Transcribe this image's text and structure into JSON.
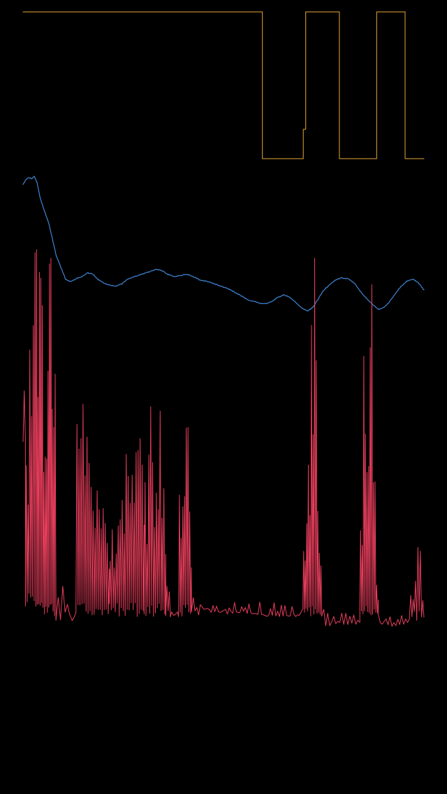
{
  "chart_data": {
    "type": "line",
    "title": "",
    "xlabel": "",
    "ylabel": "",
    "grid": false,
    "legend": "none",
    "x_range": [
      0,
      100
    ],
    "series": [
      {
        "id": "state",
        "color": "#e8a838",
        "stroke": 1,
        "step": true,
        "y_range": [
          0,
          1
        ],
        "points": [
          [
            0,
            1
          ],
          [
            59.7,
            1
          ],
          [
            59.7,
            0
          ],
          [
            69.9,
            0
          ],
          [
            69.9,
            0.2
          ],
          [
            70.5,
            0.2
          ],
          [
            70.5,
            1
          ],
          [
            78.9,
            1
          ],
          [
            78.9,
            0
          ],
          [
            88.2,
            0
          ],
          [
            88.2,
            1
          ],
          [
            95.3,
            1
          ],
          [
            95.3,
            0
          ],
          [
            100,
            0
          ]
        ]
      },
      {
        "id": "smooth",
        "color": "#3f86d4",
        "stroke": 1.2,
        "step": false,
        "noise": 0.6,
        "seed": 7,
        "y_range": [
          0,
          1
        ],
        "points": [
          [
            0,
            0.93
          ],
          [
            0.6,
            0.95
          ],
          [
            1.4,
            0.96
          ],
          [
            2.2,
            0.955
          ],
          [
            2.8,
            0.965
          ],
          [
            3.5,
            0.94
          ],
          [
            4.2,
            0.88
          ],
          [
            5.2,
            0.83
          ],
          [
            6.3,
            0.78
          ],
          [
            7.3,
            0.71
          ],
          [
            8.3,
            0.64
          ],
          [
            9.5,
            0.59
          ],
          [
            10.6,
            0.545
          ],
          [
            11.7,
            0.535
          ],
          [
            13,
            0.545
          ],
          [
            14.6,
            0.555
          ],
          [
            16.2,
            0.57
          ],
          [
            17.5,
            0.565
          ],
          [
            18.6,
            0.545
          ],
          [
            20,
            0.53
          ],
          [
            21.7,
            0.52
          ],
          [
            23.2,
            0.515
          ],
          [
            24.6,
            0.525
          ],
          [
            26.1,
            0.545
          ],
          [
            27.8,
            0.555
          ],
          [
            29.6,
            0.565
          ],
          [
            31.4,
            0.575
          ],
          [
            33.2,
            0.585
          ],
          [
            34.6,
            0.58
          ],
          [
            36.1,
            0.565
          ],
          [
            37.8,
            0.555
          ],
          [
            39.5,
            0.56
          ],
          [
            41,
            0.565
          ],
          [
            42.5,
            0.555
          ],
          [
            44.2,
            0.54
          ],
          [
            46,
            0.535
          ],
          [
            47.8,
            0.525
          ],
          [
            49.5,
            0.515
          ],
          [
            51.2,
            0.505
          ],
          [
            52.9,
            0.49
          ],
          [
            54.6,
            0.475
          ],
          [
            56,
            0.46
          ],
          [
            57.5,
            0.455
          ],
          [
            59.2,
            0.445
          ],
          [
            60.8,
            0.445
          ],
          [
            62.2,
            0.455
          ],
          [
            63.5,
            0.47
          ],
          [
            65,
            0.48
          ],
          [
            66.6,
            0.47
          ],
          [
            68.3,
            0.445
          ],
          [
            69.7,
            0.425
          ],
          [
            71.1,
            0.415
          ],
          [
            72.3,
            0.43
          ],
          [
            73.5,
            0.46
          ],
          [
            74.8,
            0.495
          ],
          [
            76.3,
            0.52
          ],
          [
            77.8,
            0.54
          ],
          [
            79.5,
            0.55
          ],
          [
            81.2,
            0.545
          ],
          [
            82.8,
            0.525
          ],
          [
            84.4,
            0.49
          ],
          [
            86,
            0.46
          ],
          [
            87.3,
            0.44
          ],
          [
            88.6,
            0.42
          ],
          [
            90,
            0.43
          ],
          [
            91.3,
            0.45
          ],
          [
            92.6,
            0.48
          ],
          [
            94,
            0.51
          ],
          [
            95.6,
            0.535
          ],
          [
            97.2,
            0.545
          ],
          [
            98.6,
            0.53
          ],
          [
            100,
            0.5
          ]
        ]
      },
      {
        "id": "activity",
        "color": "#e83e5c",
        "stroke": 1,
        "step": false,
        "y_range": [
          0,
          1
        ],
        "segments": [
          {
            "from": 0,
            "to": 0.6,
            "base": 0.38,
            "amp": 0.14,
            "cycle": 1.1
          },
          {
            "from": 0.6,
            "to": 3.2,
            "base": 0.06,
            "amp": 0.78,
            "cycle": 0.42,
            "env": [
              [
                0,
                0.42
              ],
              [
                1.5,
                0.62
              ],
              [
                2.8,
                0.92
              ],
              [
                3.2,
                0.99
              ]
            ]
          },
          {
            "from": 3.2,
            "to": 8.2,
            "base": 0.04,
            "amp": 0.9,
            "cycle": 0.36,
            "env": [
              [
                3.2,
                0.96
              ],
              [
                4.2,
                0.82
              ],
              [
                5,
                0.88
              ],
              [
                6,
                0.62
              ],
              [
                7,
                0.88
              ],
              [
                8.2,
                0.55
              ]
            ]
          },
          {
            "from": 8.2,
            "to": 12.2,
            "base": 0.02,
            "amp": 0.25,
            "cycle": 1.1,
            "env": [
              [
                8.2,
                0.22
              ],
              [
                9.5,
                0.12
              ],
              [
                11,
                0.08
              ],
              [
                12.2,
                0.04
              ]
            ]
          },
          {
            "from": 12.2,
            "to": 13.2,
            "base": 0.02,
            "amp": 0.04,
            "cycle": 1.2
          },
          {
            "from": 13.2,
            "to": 21.5,
            "base": 0.04,
            "amp": 0.56,
            "cycle": 0.5,
            "env": [
              [
                13.2,
                0.32
              ],
              [
                14,
                0.72
              ],
              [
                15.2,
                0.5
              ],
              [
                16.6,
                0.4
              ],
              [
                17.8,
                0.22
              ],
              [
                19,
                0.38
              ],
              [
                20.5,
                0.32
              ],
              [
                21.5,
                0.18
              ]
            ]
          },
          {
            "from": 21.5,
            "to": 30.2,
            "base": 0.04,
            "amp": 0.48,
            "cycle": 0.5,
            "env": [
              [
                21.5,
                0.2
              ],
              [
                22.8,
                0.28
              ],
              [
                24,
                0.38
              ],
              [
                25.5,
                0.46
              ],
              [
                27,
                0.42
              ],
              [
                28.6,
                0.48
              ],
              [
                30.2,
                0.4
              ]
            ]
          },
          {
            "from": 30.2,
            "to": 35.6,
            "base": 0.04,
            "amp": 0.62,
            "cycle": 0.48,
            "env": [
              [
                30.2,
                0.4
              ],
              [
                31.6,
                0.5
              ],
              [
                33,
                0.55
              ],
              [
                34.3,
                0.46
              ],
              [
                35.6,
                0.22
              ]
            ]
          },
          {
            "from": 35.6,
            "to": 38.8,
            "base": 0.03,
            "amp": 0.2,
            "cycle": 0.6,
            "env": [
              [
                35.6,
                0.14
              ],
              [
                37.5,
                0.06
              ],
              [
                38.8,
                0.04
              ]
            ]
          },
          {
            "from": 38.8,
            "to": 42,
            "base": 0.04,
            "amp": 0.68,
            "cycle": 0.42,
            "env": [
              [
                38.8,
                0.3
              ],
              [
                40,
                0.54
              ],
              [
                41,
                0.68
              ],
              [
                42,
                0.22
              ]
            ]
          },
          {
            "from": 42,
            "to": 69.8,
            "base": 0.04,
            "amp": 0.08,
            "cycle": 0.9,
            "env": [
              [
                42,
                0.1
              ],
              [
                46,
                0.06
              ],
              [
                52,
                0.06
              ],
              [
                58,
                0.05
              ],
              [
                64,
                0.04
              ],
              [
                69.8,
                0.05
              ]
            ]
          },
          {
            "from": 69.8,
            "to": 74.5,
            "base": 0.04,
            "amp": 0.9,
            "cycle": 0.4,
            "env": [
              [
                69.8,
                0.1
              ],
              [
                70.8,
                0.52
              ],
              [
                71.8,
                0.62
              ],
              [
                72.6,
                0.94
              ],
              [
                73.4,
                0.4
              ],
              [
                74.5,
                0.12
              ]
            ]
          },
          {
            "from": 74.5,
            "to": 84,
            "base": 0.02,
            "amp": 0.05,
            "cycle": 1.0,
            "env": [
              [
                74.5,
                0.06
              ],
              [
                78,
                0.03
              ],
              [
                84,
                0.03
              ]
            ]
          },
          {
            "from": 84,
            "to": 88.6,
            "base": 0.04,
            "amp": 0.86,
            "cycle": 0.4,
            "env": [
              [
                84,
                0.22
              ],
              [
                85,
                0.6
              ],
              [
                86,
                0.52
              ],
              [
                86.8,
                0.92
              ],
              [
                87.6,
                0.38
              ],
              [
                88.6,
                0.12
              ]
            ]
          },
          {
            "from": 88.6,
            "to": 96.4,
            "base": 0.02,
            "amp": 0.05,
            "cycle": 1.0,
            "env": [
              [
                88.6,
                0.04
              ],
              [
                92,
                0.02
              ],
              [
                96.4,
                0.03
              ]
            ]
          },
          {
            "from": 96.4,
            "to": 100,
            "base": 0.03,
            "amp": 0.22,
            "cycle": 0.6,
            "env": [
              [
                96.4,
                0.08
              ],
              [
                98.3,
                0.22
              ],
              [
                99.2,
                0.18
              ],
              [
                100,
                0.1
              ]
            ]
          }
        ]
      }
    ]
  }
}
